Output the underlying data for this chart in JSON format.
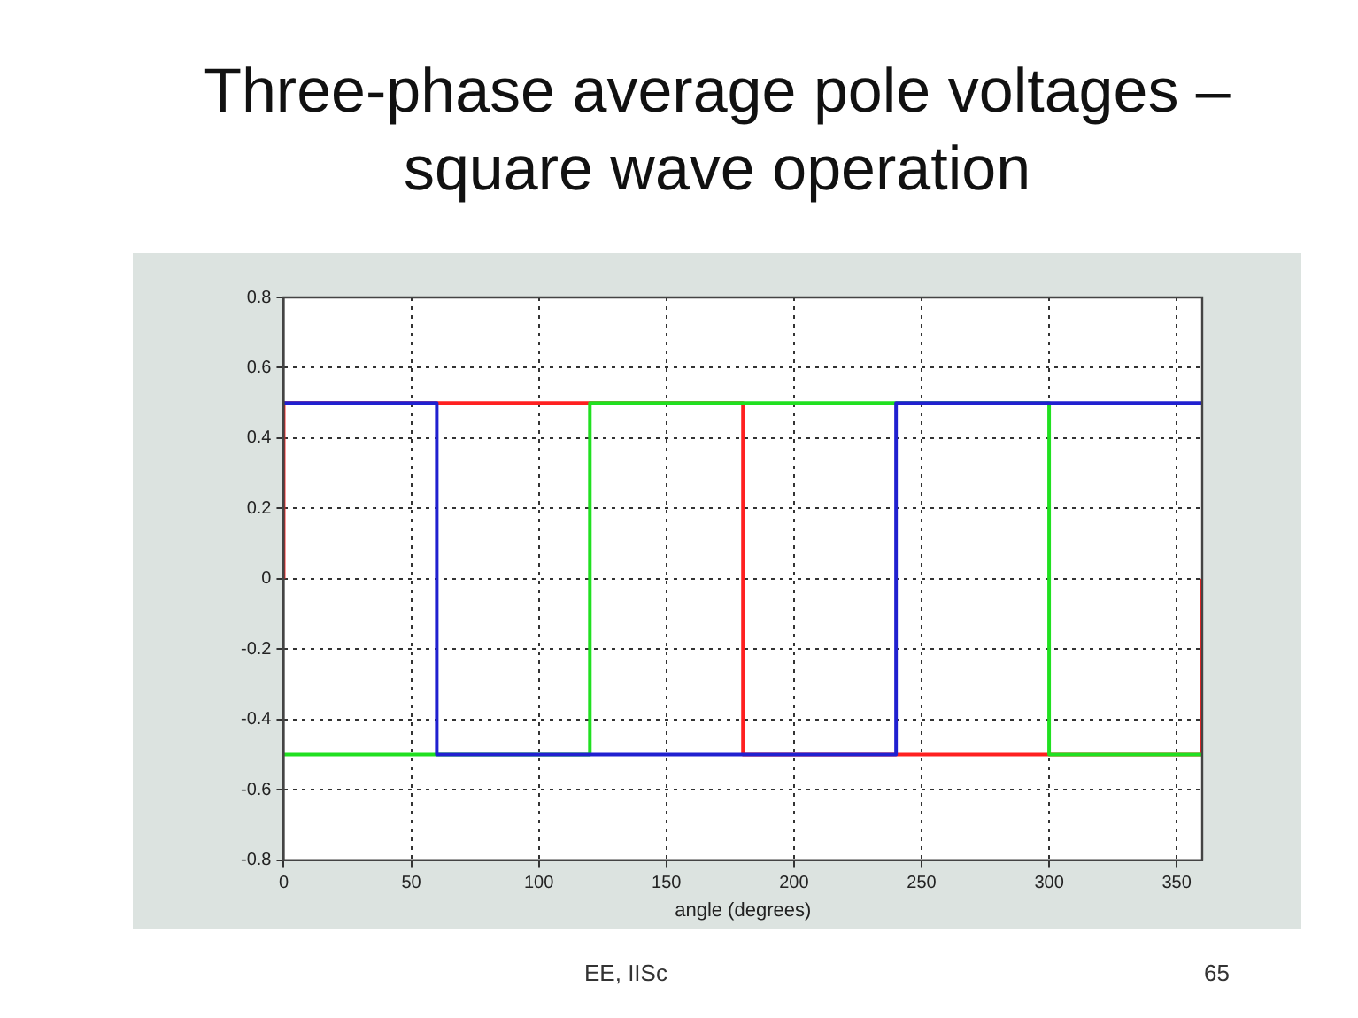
{
  "chart_data": {
    "type": "line",
    "title": "Three-phase average pole voltages – square wave operation",
    "xlabel": "angle (degrees)",
    "series": [
      {
        "color": "#ff2020",
        "x": [
          0,
          0,
          180,
          180,
          360,
          360
        ],
        "values": [
          0,
          0.5,
          0.5,
          -0.5,
          -0.5,
          0
        ]
      },
      {
        "color": "#20e020",
        "x": [
          0,
          120,
          120,
          300,
          300,
          360
        ],
        "values": [
          -0.5,
          -0.5,
          0.5,
          0.5,
          -0.5,
          -0.5
        ]
      },
      {
        "color": "#2020d0",
        "x": [
          0,
          60,
          60,
          240,
          240,
          360
        ],
        "values": [
          0.5,
          0.5,
          -0.5,
          -0.5,
          0.5,
          0.5
        ]
      }
    ],
    "xlim": [
      0,
      360
    ],
    "xticks": [
      0,
      50,
      100,
      150,
      200,
      250,
      300,
      350
    ],
    "ylim": [
      -0.8,
      0.8
    ],
    "yticks": [
      -0.8,
      -0.6,
      -0.4,
      -0.2,
      0,
      0.2,
      0.4,
      0.6,
      0.8
    ],
    "grid": true,
    "legend": false,
    "marker": "none",
    "line_style": "solid",
    "annotations": [
      "EE, IISc",
      "65"
    ]
  }
}
